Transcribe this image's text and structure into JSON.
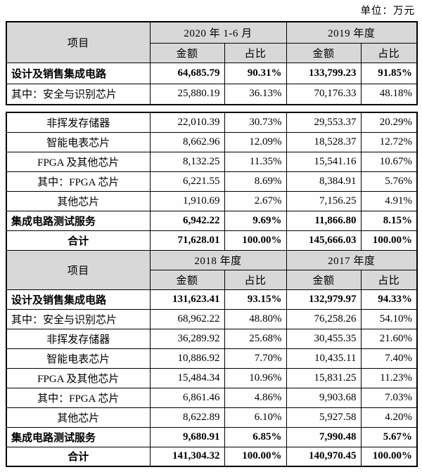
{
  "unit_label": "单位：万元",
  "labels": {
    "item": "项目",
    "amount": "金额",
    "ratio": "占比"
  },
  "table_2020_2019": {
    "period_headers": [
      "2020 年 1-6 月",
      "2019 年度"
    ],
    "rows_part1": [
      {
        "label": "设计及销售集成电路",
        "bold": true,
        "align": "left",
        "values": [
          "64,685.79",
          "90.31%",
          "133,799.23",
          "91.85%"
        ]
      },
      {
        "label": "其中：安全与识别芯片",
        "bold": false,
        "align": "left",
        "values": [
          "25,880.19",
          "36.13%",
          "70,176.33",
          "48.18%"
        ]
      }
    ],
    "rows_part2": [
      {
        "label": "非挥发存储器",
        "bold": false,
        "align": "center",
        "values": [
          "22,010.39",
          "30.73%",
          "29,553.37",
          "20.29%"
        ]
      },
      {
        "label": "智能电表芯片",
        "bold": false,
        "align": "center",
        "values": [
          "8,662.96",
          "12.09%",
          "18,528.37",
          "12.72%"
        ]
      },
      {
        "label": "FPGA 及其他芯片",
        "bold": false,
        "align": "center",
        "values": [
          "8,132.25",
          "11.35%",
          "15,541.16",
          "10.67%"
        ]
      },
      {
        "label": "其中：FPGA 芯片",
        "bold": false,
        "align": "center",
        "values": [
          "6,221.55",
          "8.69%",
          "8,384.91",
          "5.76%"
        ]
      },
      {
        "label": "其他芯片",
        "bold": false,
        "align": "center",
        "values": [
          "1,910.69",
          "2.67%",
          "7,156.25",
          "4.91%"
        ]
      },
      {
        "label": "集成电路测试服务",
        "bold": true,
        "align": "left",
        "values": [
          "6,942.22",
          "9.69%",
          "11,866.80",
          "8.15%"
        ]
      },
      {
        "label": "合计",
        "bold": true,
        "align": "center",
        "values": [
          "71,628.01",
          "100.00%",
          "145,666.03",
          "100.00%"
        ]
      }
    ]
  },
  "table_2018_2017": {
    "period_headers": [
      "2018 年度",
      "2017 年度"
    ],
    "rows": [
      {
        "label": "设计及销售集成电路",
        "bold": true,
        "align": "left",
        "values": [
          "131,623.41",
          "93.15%",
          "132,979.97",
          "94.33%"
        ]
      },
      {
        "label": "其中：安全与识别芯片",
        "bold": false,
        "align": "left",
        "values": [
          "68,962.22",
          "48.80%",
          "76,258.26",
          "54.10%"
        ]
      },
      {
        "label": "非挥发存储器",
        "bold": false,
        "align": "center",
        "values": [
          "36,289.92",
          "25.68%",
          "30,455.35",
          "21.60%"
        ]
      },
      {
        "label": "智能电表芯片",
        "bold": false,
        "align": "center",
        "values": [
          "10,886.92",
          "7.70%",
          "10,435.11",
          "7.40%"
        ]
      },
      {
        "label": "FPGA 及其他芯片",
        "bold": false,
        "align": "center",
        "values": [
          "15,484.34",
          "10.96%",
          "15,831.25",
          "11.23%"
        ]
      },
      {
        "label": "其中：FPGA 芯片",
        "bold": false,
        "align": "center",
        "values": [
          "6,861.46",
          "4.86%",
          "9,903.68",
          "7.03%"
        ]
      },
      {
        "label": "其他芯片",
        "bold": false,
        "align": "center",
        "values": [
          "8,622.89",
          "6.10%",
          "5,927.58",
          "4.20%"
        ]
      },
      {
        "label": "集成电路测试服务",
        "bold": true,
        "align": "left",
        "values": [
          "9,680.91",
          "6.85%",
          "7,990.48",
          "5.67%"
        ]
      },
      {
        "label": "合计",
        "bold": true,
        "align": "center",
        "values": [
          "141,304.32",
          "100.00%",
          "140,970.45",
          "100.00%"
        ]
      }
    ]
  }
}
